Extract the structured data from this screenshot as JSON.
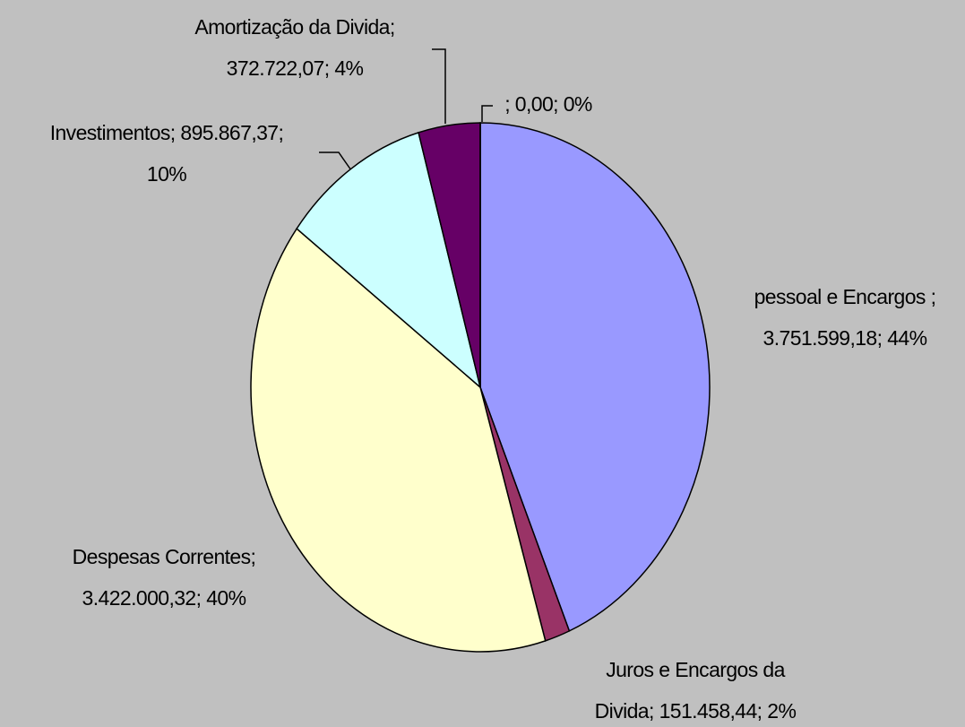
{
  "chart_data": {
    "type": "pie",
    "values": [
      3751599.18,
      151458.44,
      3422000.32,
      895867.37,
      372722.07,
      0
    ],
    "colors": [
      "#9999ff",
      "#993366",
      "#ffffcc",
      "#ccffff",
      "#660066",
      "#ff8080"
    ],
    "data_labels": [
      [
        "pessoal e Encargos ;",
        "3.751.599,18; 44%"
      ],
      [
        "Juros e Encargos da",
        "Divida; 151.458,44; 2%"
      ],
      [
        "Despesas Correntes;",
        "3.422.000,32; 40%"
      ],
      [
        "Investimentos; 895.867,37;",
        "10%"
      ],
      [
        "Amortização da Divida;",
        "372.722,07; 4%"
      ],
      [
        "; 0,00; 0%"
      ]
    ]
  }
}
